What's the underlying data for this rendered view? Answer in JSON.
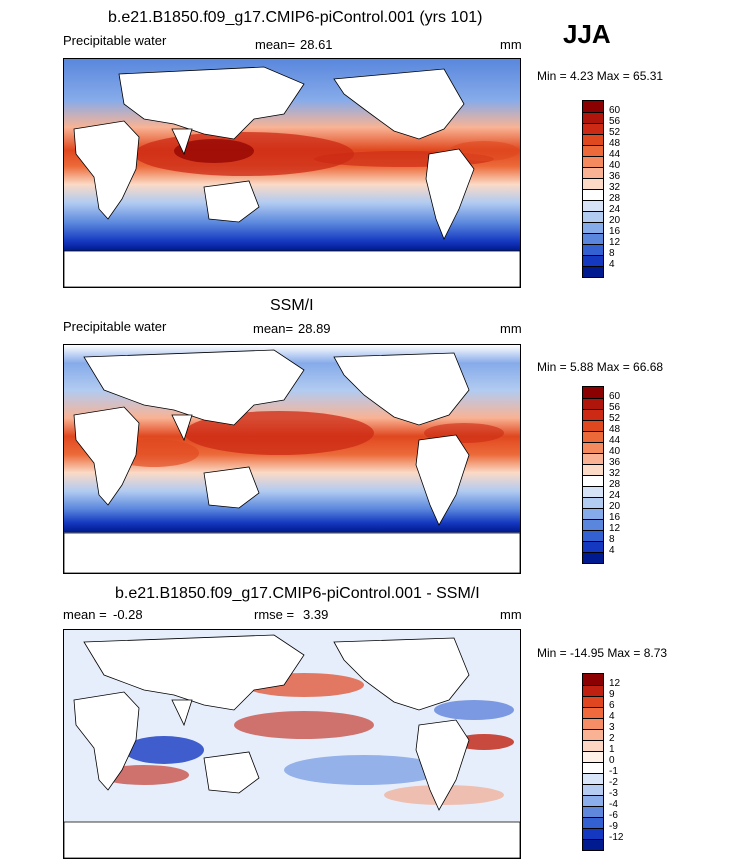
{
  "season": "JJA",
  "panels": [
    {
      "title": "b.e21.B1850.f09_g17.CMIP6-piControl.001 (yrs 101)",
      "variable": "Precipitable water",
      "stat1_label": "mean=",
      "stat1_value": "28.61",
      "stat2_label": "",
      "stat2_value": "",
      "units": "mm",
      "minmax": "Min =   4.23 Max =  65.31",
      "colorbar": {
        "labels": [
          "60",
          "56",
          "52",
          "48",
          "44",
          "40",
          "36",
          "32",
          "28",
          "24",
          "20",
          "16",
          "12",
          "8",
          "4"
        ],
        "colors": [
          "#8b0000",
          "#b0150b",
          "#cc2a14",
          "#e0481f",
          "#ec6a3a",
          "#f48a5e",
          "#f9b394",
          "#fbdac6",
          "#ffffff",
          "#d6e3f7",
          "#b2cbf1",
          "#86abea",
          "#5a87dd",
          "#3461d2",
          "#1538c0",
          "#001a8f"
        ]
      }
    },
    {
      "title": "SSM/I",
      "variable": "Precipitable water",
      "stat1_label": "mean=",
      "stat1_value": "28.89",
      "stat2_label": "",
      "stat2_value": "",
      "units": "mm",
      "minmax": "Min =   5.88 Max =  66.68",
      "colorbar": {
        "labels": [
          "60",
          "56",
          "52",
          "48",
          "44",
          "40",
          "36",
          "32",
          "28",
          "24",
          "20",
          "16",
          "12",
          "8",
          "4"
        ],
        "colors": [
          "#8b0000",
          "#b0150b",
          "#cc2a14",
          "#e0481f",
          "#ec6a3a",
          "#f48a5e",
          "#f9b394",
          "#fbdac6",
          "#ffffff",
          "#d6e3f7",
          "#b2cbf1",
          "#86abea",
          "#5a87dd",
          "#3461d2",
          "#1538c0",
          "#001a8f"
        ]
      }
    },
    {
      "title": "b.e21.B1850.f09_g17.CMIP6-piControl.001 - SSM/I",
      "variable": "",
      "stat1_label": "mean =",
      "stat1_value": "-0.28",
      "stat2_label": "rmse =",
      "stat2_value": "3.39",
      "units": "mm",
      "minmax": "Min = -14.95 Max =   8.73",
      "colorbar": {
        "labels": [
          "12",
          "9",
          "6",
          "4",
          "3",
          "2",
          "1",
          "0",
          "-1",
          "-2",
          "-3",
          "-4",
          "-6",
          "-9",
          "-12"
        ],
        "colors": [
          "#8b0000",
          "#c0200f",
          "#e0461f",
          "#f06a3e",
          "#f58e66",
          "#f9b394",
          "#fcd6c2",
          "#fff0e8",
          "#ffffff",
          "#d9e5f8",
          "#b6cdf1",
          "#8caeea",
          "#5f88dd",
          "#3461d2",
          "#1538c0",
          "#001a8f"
        ]
      }
    }
  ]
}
